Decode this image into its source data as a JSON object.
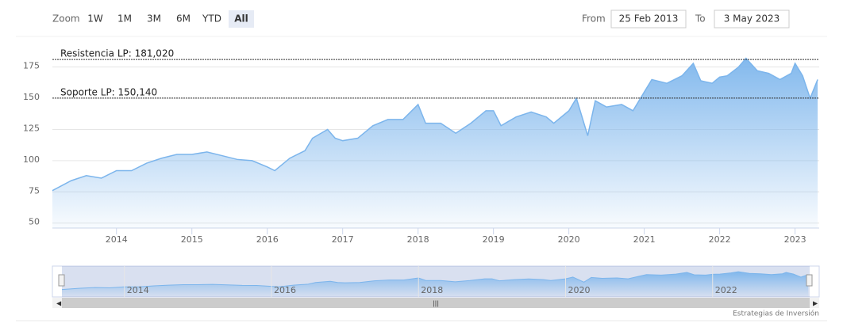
{
  "zoom": {
    "label": "Zoom",
    "buttons": [
      "1W",
      "1M",
      "3M",
      "6M",
      "YTD",
      "All"
    ],
    "selected": 5
  },
  "range": {
    "from_label": "From",
    "from": "25 Feb 2013",
    "to_label": "To",
    "to": "3 May 2023"
  },
  "chart_data": {
    "type": "area",
    "color": "#7cb5ec",
    "x": [
      2013.15,
      2013.4,
      2013.6,
      2013.8,
      2014.0,
      2014.2,
      2014.4,
      2014.6,
      2014.8,
      2015.0,
      2015.2,
      2015.4,
      2015.6,
      2015.8,
      2016.0,
      2016.1,
      2016.3,
      2016.5,
      2016.6,
      2016.8,
      2016.9,
      2017.0,
      2017.2,
      2017.4,
      2017.6,
      2017.8,
      2018.0,
      2018.1,
      2018.3,
      2018.5,
      2018.7,
      2018.9,
      2019.0,
      2019.1,
      2019.3,
      2019.5,
      2019.7,
      2019.8,
      2020.0,
      2020.1,
      2020.25,
      2020.35,
      2020.5,
      2020.7,
      2020.85,
      2021.0,
      2021.1,
      2021.3,
      2021.5,
      2021.65,
      2021.75,
      2021.9,
      2022.0,
      2022.1,
      2022.25,
      2022.35,
      2022.5,
      2022.65,
      2022.8,
      2022.95,
      2023.0,
      2023.1,
      2023.2,
      2023.3
    ],
    "values": [
      76,
      84,
      88,
      86,
      92,
      92,
      98,
      102,
      105,
      105,
      107,
      104,
      101,
      100,
      95,
      92,
      102,
      108,
      118,
      125,
      118,
      116,
      118,
      128,
      133,
      133,
      145,
      130,
      130,
      122,
      130,
      140,
      140,
      128,
      135,
      139,
      135,
      130,
      140,
      150,
      120,
      148,
      143,
      145,
      140,
      155,
      165,
      162,
      168,
      178,
      164,
      162,
      167,
      168,
      175,
      182,
      172,
      170,
      165,
      170,
      178,
      168,
      150,
      165
    ],
    "xlim": [
      2013.15,
      2023.32
    ],
    "ylim": [
      46,
      197
    ],
    "xticks": [
      2014,
      2015,
      2016,
      2017,
      2018,
      2019,
      2020,
      2021,
      2022,
      2023
    ],
    "yticks": [
      50,
      75,
      100,
      125,
      150,
      175
    ],
    "grid": true,
    "plot_lines": [
      {
        "value": 181.02,
        "label": "Resistencia LP: 181,020"
      },
      {
        "value": 150.14,
        "label": "Soporte LP: 150,140"
      }
    ]
  },
  "navigator": {
    "xticks": [
      2014,
      2016,
      2018,
      2020,
      2022
    ]
  },
  "credit": "Estrategias de Inversión"
}
